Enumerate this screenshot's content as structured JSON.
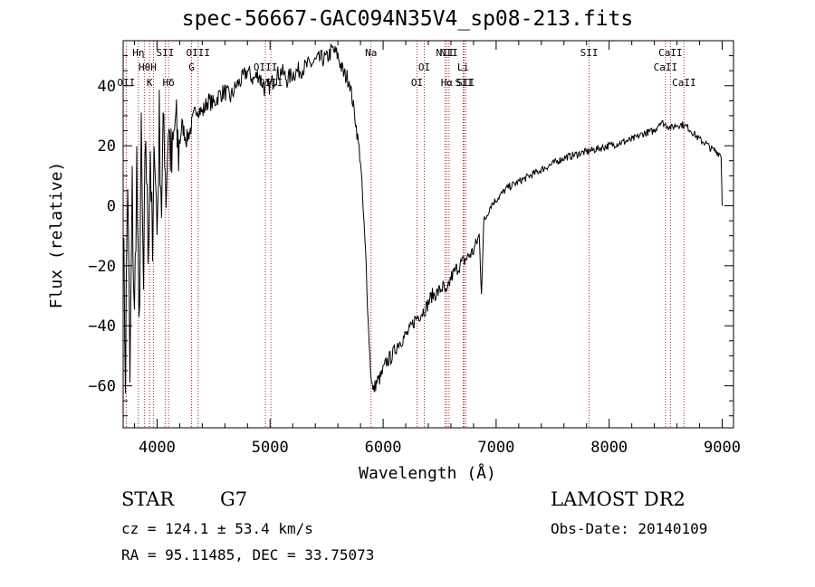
{
  "title": "spec-56667-GAC094N35V4_sp08-213.fits",
  "chart_data": {
    "type": "line",
    "xlabel": "Wavelength (Å)",
    "ylabel": "Flux (relative)",
    "xlim": [
      3700,
      9100
    ],
    "ylim": [
      -74,
      55
    ],
    "xticks": [
      4000,
      5000,
      6000,
      7000,
      8000,
      9000
    ],
    "yticks": [
      -60,
      -40,
      -20,
      0,
      20,
      40
    ],
    "series": [
      {
        "values": [
          [
            3700,
            -5
          ],
          [
            3720,
            -55
          ],
          [
            3740,
            10
          ],
          [
            3760,
            -60
          ],
          [
            3780,
            5
          ],
          [
            3800,
            -40
          ],
          [
            3820,
            15
          ],
          [
            3840,
            -45
          ],
          [
            3860,
            20
          ],
          [
            3880,
            -30
          ],
          [
            3900,
            25
          ],
          [
            3920,
            -15
          ],
          [
            3940,
            20
          ],
          [
            3960,
            -20
          ],
          [
            3980,
            25
          ],
          [
            4000,
            -10
          ],
          [
            4020,
            28
          ],
          [
            4040,
            0
          ],
          [
            4060,
            30
          ],
          [
            4080,
            5
          ],
          [
            4100,
            28
          ],
          [
            4130,
            12
          ],
          [
            4160,
            28
          ],
          [
            4190,
            18
          ],
          [
            4220,
            27
          ],
          [
            4260,
            22
          ],
          [
            4300,
            26
          ],
          [
            4350,
            33
          ],
          [
            4400,
            31
          ],
          [
            4450,
            35
          ],
          [
            4500,
            34
          ],
          [
            4550,
            37
          ],
          [
            4600,
            38
          ],
          [
            4650,
            36
          ],
          [
            4700,
            40
          ],
          [
            4750,
            42
          ],
          [
            4800,
            45
          ],
          [
            4850,
            42
          ],
          [
            4900,
            44
          ],
          [
            4950,
            39
          ],
          [
            5000,
            40
          ],
          [
            5050,
            43
          ],
          [
            5100,
            45
          ],
          [
            5150,
            42
          ],
          [
            5200,
            44
          ],
          [
            5250,
            45
          ],
          [
            5300,
            46
          ],
          [
            5350,
            47
          ],
          [
            5400,
            48
          ],
          [
            5450,
            49
          ],
          [
            5500,
            49
          ],
          [
            5550,
            52
          ],
          [
            5600,
            50
          ],
          [
            5650,
            44
          ],
          [
            5700,
            42
          ],
          [
            5750,
            30
          ],
          [
            5800,
            15
          ],
          [
            5850,
            -20
          ],
          [
            5870,
            -40
          ],
          [
            5890,
            -55
          ],
          [
            5910,
            -62
          ],
          [
            5940,
            -59
          ],
          [
            5980,
            -57
          ],
          [
            6030,
            -52
          ],
          [
            6080,
            -50
          ],
          [
            6130,
            -46
          ],
          [
            6180,
            -44
          ],
          [
            6230,
            -42
          ],
          [
            6280,
            -38
          ],
          [
            6330,
            -36
          ],
          [
            6380,
            -34
          ],
          [
            6430,
            -30
          ],
          [
            6480,
            -29
          ],
          [
            6530,
            -27
          ],
          [
            6560,
            -30
          ],
          [
            6600,
            -24
          ],
          [
            6650,
            -21
          ],
          [
            6700,
            -19
          ],
          [
            6750,
            -17
          ],
          [
            6800,
            -15
          ],
          [
            6850,
            -10
          ],
          [
            6870,
            -28
          ],
          [
            6890,
            -6
          ],
          [
            6950,
            0
          ],
          [
            7000,
            2
          ],
          [
            7050,
            4
          ],
          [
            7100,
            6
          ],
          [
            7150,
            7
          ],
          [
            7200,
            8
          ],
          [
            7300,
            10
          ],
          [
            7400,
            12
          ],
          [
            7500,
            14
          ],
          [
            7600,
            16
          ],
          [
            7700,
            17
          ],
          [
            7800,
            18
          ],
          [
            7900,
            19
          ],
          [
            8000,
            20
          ],
          [
            8100,
            21
          ],
          [
            8200,
            22
          ],
          [
            8300,
            24
          ],
          [
            8400,
            25
          ],
          [
            8450,
            28
          ],
          [
            8500,
            27
          ],
          [
            8550,
            26
          ],
          [
            8600,
            27
          ],
          [
            8650,
            27
          ],
          [
            8700,
            26
          ],
          [
            8750,
            24
          ],
          [
            8800,
            22
          ],
          [
            8850,
            21
          ],
          [
            8900,
            19
          ],
          [
            8950,
            18
          ],
          [
            8990,
            17
          ],
          [
            9000,
            0
          ]
        ]
      }
    ],
    "lines": [
      {
        "x": 3727,
        "label": "OII",
        "row": 3
      },
      {
        "x": 3835,
        "label": "Hη",
        "row": 1
      },
      {
        "x": 3889,
        "label": "Hθ",
        "row": 2
      },
      {
        "x": 3934,
        "label": "K",
        "row": 3
      },
      {
        "x": 3969,
        "label": "H",
        "row": 2
      },
      {
        "x": 4072,
        "label": "SII",
        "row": 1
      },
      {
        "x": 4102,
        "label": "Hδ",
        "row": 3
      },
      {
        "x": 4305,
        "label": "G",
        "row": 2
      },
      {
        "x": 4363,
        "label": "OIII",
        "row": 1
      },
      {
        "x": 4959,
        "label": "OIII",
        "row": 2
      },
      {
        "x": 5007,
        "label": "OIII",
        "row": 3
      },
      {
        "x": 5893,
        "label": "Na",
        "row": 1
      },
      {
        "x": 6300,
        "label": "OI",
        "row": 3
      },
      {
        "x": 6364,
        "label": "OI",
        "row": 2
      },
      {
        "x": 6548,
        "label": "NII",
        "row": 1
      },
      {
        "x": 6563,
        "label": "Hα",
        "row": 3
      },
      {
        "x": 6583,
        "label": "NII",
        "row": 1
      },
      {
        "x": 6708,
        "label": "Li",
        "row": 2
      },
      {
        "x": 6716,
        "label": "SII",
        "row": 3
      },
      {
        "x": 6731,
        "label": "SII",
        "row": 3
      },
      {
        "x": 7823,
        "label": "SII",
        "row": 1
      },
      {
        "x": 8498,
        "label": "CaII",
        "row": 2
      },
      {
        "x": 8542,
        "label": "CaII",
        "row": 1
      },
      {
        "x": 8662,
        "label": "CaII",
        "row": 3
      }
    ]
  },
  "footer": {
    "class_label": "STAR",
    "subclass": "G7",
    "cz": "cz = 124.1 ± 53.4 km/s",
    "coords": "RA =  95.11485, DEC =  33.75073",
    "survey": "LAMOST DR2",
    "obs_date": "Obs-Date: 20140109"
  },
  "colors": {
    "line_marker": "#b22222",
    "spectrum": "#000000"
  }
}
